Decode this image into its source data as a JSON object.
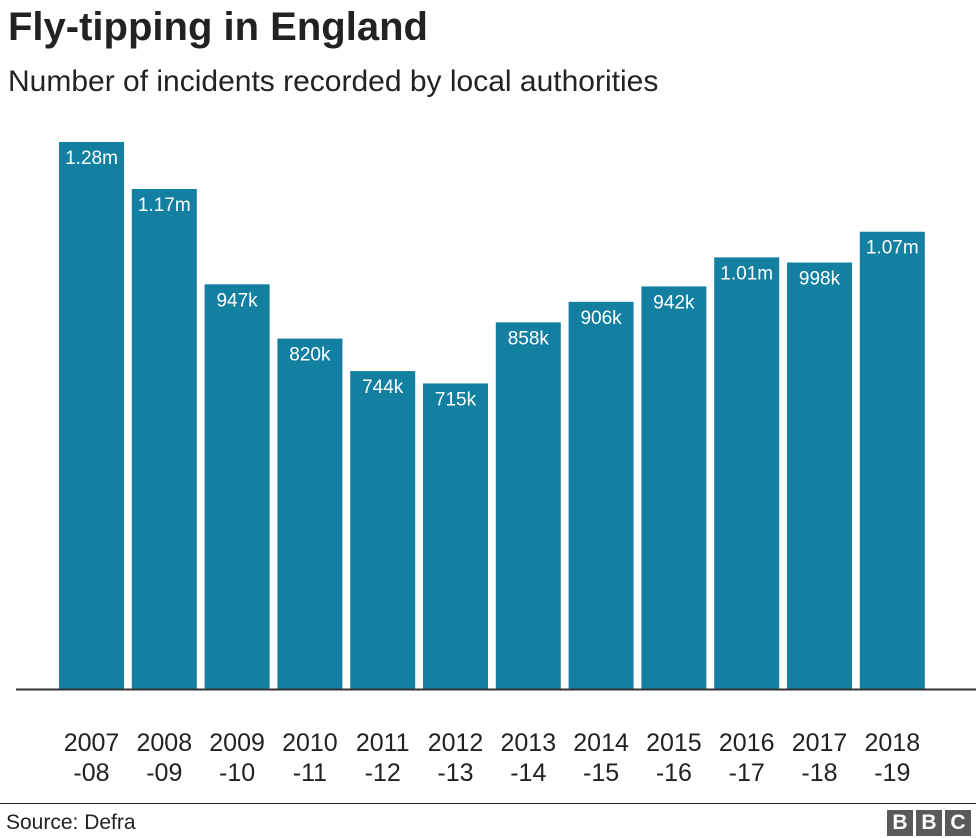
{
  "chart_data": {
    "type": "bar",
    "title": "Fly-tipping in England",
    "subtitle": "Number of incidents recorded by local authorities",
    "categories": [
      [
        "2007",
        "-08"
      ],
      [
        "2008",
        "-09"
      ],
      [
        "2009",
        "-10"
      ],
      [
        "2010",
        "-11"
      ],
      [
        "2011",
        "-12"
      ],
      [
        "2012",
        "-13"
      ],
      [
        "2013",
        "-14"
      ],
      [
        "2014",
        "-15"
      ],
      [
        "2015",
        "-16"
      ],
      [
        "2016",
        "-17"
      ],
      [
        "2017",
        "-18"
      ],
      [
        "2018",
        "-19"
      ]
    ],
    "values": [
      1280000,
      1170000,
      947000,
      820000,
      744000,
      715000,
      858000,
      906000,
      942000,
      1010000,
      998000,
      1070000
    ],
    "data_labels": [
      "1.28m",
      "1.17m",
      "947k",
      "820k",
      "744k",
      "715k",
      "858k",
      "906k",
      "942k",
      "1.01m",
      "998k",
      "1.07m"
    ],
    "ylim": [
      0,
      1280000
    ],
    "bar_color": "#1380a1",
    "grid": false,
    "legend": "none"
  },
  "footer": {
    "source": "Source: Defra",
    "logo_letters": [
      "B",
      "B",
      "C"
    ]
  }
}
